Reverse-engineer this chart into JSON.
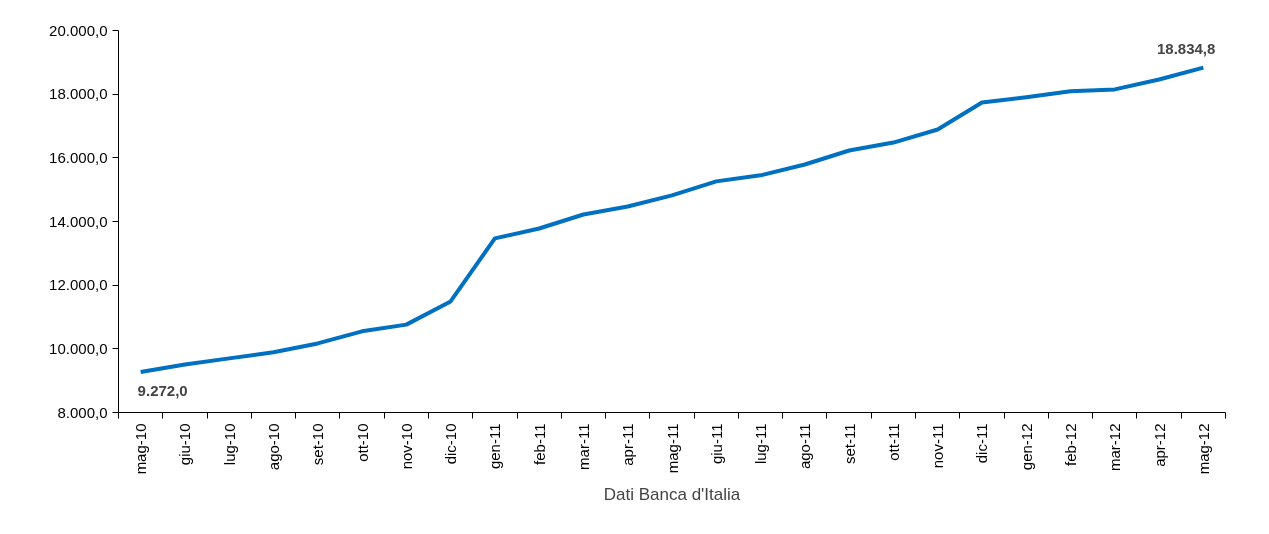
{
  "chart_data": {
    "type": "line",
    "categories": [
      "mag-10",
      "giu-10",
      "lug-10",
      "ago-10",
      "set-10",
      "ott-10",
      "nov-10",
      "dic-10",
      "gen-11",
      "feb-11",
      "mar-11",
      "apr-11",
      "mag-11",
      "giu-11",
      "lug-11",
      "ago-11",
      "set-11",
      "ott-11",
      "nov-11",
      "dic-11",
      "gen-12",
      "feb-12",
      "mar-12",
      "apr-12",
      "mag-12"
    ],
    "series": [
      {
        "color": "#0070c0",
        "values": [
          9272.0,
          9510,
          9700,
          9890,
          10170,
          10550,
          10760,
          11490,
          13470,
          13780,
          14220,
          14470,
          14820,
          15260,
          15450,
          15790,
          16230,
          16480,
          16890,
          17740,
          17900,
          18090,
          18150,
          18460,
          18834.8
        ],
        "value_labels": [
          "9.272,0",
          null,
          null,
          null,
          null,
          null,
          null,
          null,
          null,
          null,
          null,
          null,
          null,
          null,
          null,
          null,
          null,
          null,
          null,
          null,
          null,
          null,
          null,
          null,
          "18.834,8"
        ]
      }
    ],
    "ylim": [
      8000,
      20000
    ],
    "yticks": [
      {
        "value": 8000,
        "label": "8.000,0"
      },
      {
        "value": 10000,
        "label": "10.000,0"
      },
      {
        "value": 12000,
        "label": "12.000,0"
      },
      {
        "value": 14000,
        "label": "14.000,0"
      },
      {
        "value": 16000,
        "label": "16.000,0"
      },
      {
        "value": 18000,
        "label": "18.000,0"
      },
      {
        "value": 20000,
        "label": "20.000,0"
      }
    ],
    "grid": false,
    "marker": "none",
    "line_style": "solid",
    "annotations": [
      "Dati Banca d'Italia"
    ]
  }
}
